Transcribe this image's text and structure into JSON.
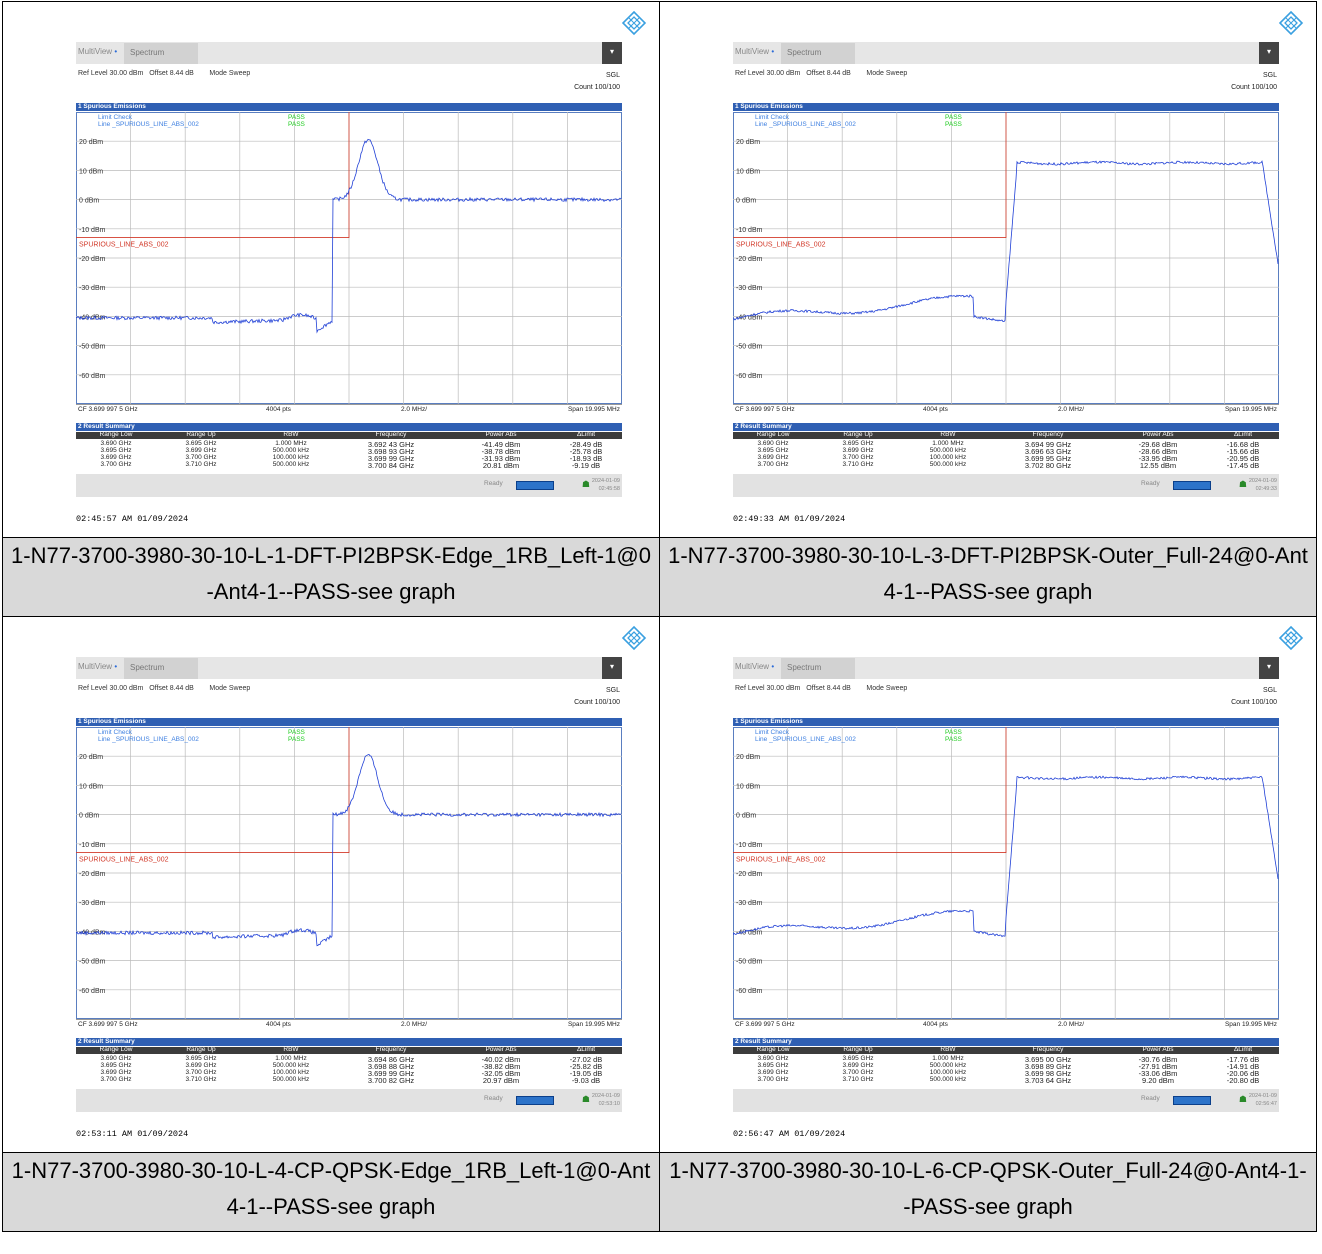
{
  "panels": [
    {
      "tab_multiview": "MultiView",
      "tab_spectrum": "Spectrum",
      "ref_level": "Ref Level 30.00 dBm",
      "offset": "Offset 8.44 dB",
      "mode": "Mode Sweep",
      "sgl": "SGL",
      "count": "Count 100/100",
      "spur_title": "1 Spurious Emissions",
      "limit_check": "Limit Check",
      "limit_check_result": "PASS",
      "line_name": "Line _SPURIOUS_LINE_ABS_002",
      "line_result": "PASS",
      "limit_label": "SPURIOUS_LINE_ABS_002",
      "cf": "CF 3.699 997 5 GHz",
      "pts": "4004 pts",
      "div": "2.0 MHz/",
      "span": "Span 19.995 MHz",
      "result_title": "2 Result Summary",
      "headers": [
        "Range Low",
        "Range Up",
        "RBW",
        "Frequency",
        "Power Abs",
        "ΔLimit"
      ],
      "rows": [
        [
          "3.690 GHz",
          "3.695 GHz",
          "1.000 MHz",
          "3.692 43 GHz",
          "-41.49 dBm",
          "-28.49 dB"
        ],
        [
          "3.695 GHz",
          "3.699 GHz",
          "500.000 kHz",
          "3.698 93 GHz",
          "-38.78 dBm",
          "-25.78 dB"
        ],
        [
          "3.699 GHz",
          "3.700 GHz",
          "100.000 kHz",
          "3.699 99 GHz",
          "-31.93 dBm",
          "-18.93 dB"
        ],
        [
          "3.700 GHz",
          "3.710 GHz",
          "500.000 kHz",
          "3.700 84 GHz",
          "20.81 dBm",
          "-9.19 dB"
        ]
      ],
      "status": "Ready",
      "date": "2024-01-09",
      "time": "02:45:58",
      "timestamp": "02:45:57 AM  01/09/2024",
      "caption": "1-N77-3700-3980-30-10-L-1-DFT-PI2BPSK-Edge_1RB_Left-1@0-Ant4-1--PASS-see graph",
      "trace_type": "narrow"
    },
    {
      "tab_multiview": "MultiView",
      "tab_spectrum": "Spectrum",
      "ref_level": "Ref Level 30.00 dBm",
      "offset": "Offset 8.44 dB",
      "mode": "Mode Sweep",
      "sgl": "SGL",
      "count": "Count 100/100",
      "spur_title": "1 Spurious Emissions",
      "limit_check": "Limit Check",
      "limit_check_result": "PASS",
      "line_name": "Line _SPURIOUS_LINE_ABS_002",
      "line_result": "PASS",
      "limit_label": "SPURIOUS_LINE_ABS_002",
      "cf": "CF 3.699 997 5 GHz",
      "pts": "4004 pts",
      "div": "2.0 MHz/",
      "span": "Span 19.995 MHz",
      "result_title": "2 Result Summary",
      "headers": [
        "Range Low",
        "Range Up",
        "RBW",
        "Frequency",
        "Power Abs",
        "ΔLimit"
      ],
      "rows": [
        [
          "3.690 GHz",
          "3.695 GHz",
          "1.000 MHz",
          "3.694 99 GHz",
          "-29.68 dBm",
          "-16.68 dB"
        ],
        [
          "3.695 GHz",
          "3.699 GHz",
          "500.000 kHz",
          "3.696 63 GHz",
          "-28.66 dBm",
          "-15.66 dB"
        ],
        [
          "3.699 GHz",
          "3.700 GHz",
          "100.000 kHz",
          "3.699 95 GHz",
          "-33.95 dBm",
          "-20.95 dB"
        ],
        [
          "3.700 GHz",
          "3.710 GHz",
          "500.000 kHz",
          "3.702 80 GHz",
          "12.55 dBm",
          "-17.45 dB"
        ]
      ],
      "status": "Ready",
      "date": "2024-01-09",
      "time": "02:49:33",
      "timestamp": "02:49:33 AM  01/09/2024",
      "caption": "1-N77-3700-3980-30-10-L-3-DFT-PI2BPSK-Outer_Full-24@0-Ant4-1--PASS-see graph",
      "trace_type": "wide"
    },
    {
      "tab_multiview": "MultiView",
      "tab_spectrum": "Spectrum",
      "ref_level": "Ref Level 30.00 dBm",
      "offset": "Offset 8.44 dB",
      "mode": "Mode Sweep",
      "sgl": "SGL",
      "count": "Count 100/100",
      "spur_title": "1 Spurious Emissions",
      "limit_check": "Limit Check",
      "limit_check_result": "PASS",
      "line_name": "Line _SPURIOUS_LINE_ABS_002",
      "line_result": "PASS",
      "limit_label": "SPURIOUS_LINE_ABS_002",
      "cf": "CF 3.699 997 5 GHz",
      "pts": "4004 pts",
      "div": "2.0 MHz/",
      "span": "Span 19.995 MHz",
      "result_title": "2 Result Summary",
      "headers": [
        "Range Low",
        "Range Up",
        "RBW",
        "Frequency",
        "Power Abs",
        "ΔLimit"
      ],
      "rows": [
        [
          "3.690 GHz",
          "3.695 GHz",
          "1.000 MHz",
          "3.694 86 GHz",
          "-40.02 dBm",
          "-27.02 dB"
        ],
        [
          "3.695 GHz",
          "3.699 GHz",
          "500.000 kHz",
          "3.698 88 GHz",
          "-38.82 dBm",
          "-25.82 dB"
        ],
        [
          "3.699 GHz",
          "3.700 GHz",
          "100.000 kHz",
          "3.699 99 GHz",
          "-32.05 dBm",
          "-19.05 dB"
        ],
        [
          "3.700 GHz",
          "3.710 GHz",
          "500.000 kHz",
          "3.700 82 GHz",
          "20.97 dBm",
          "-9.03 dB"
        ]
      ],
      "status": "Ready",
      "date": "2024-01-09",
      "time": "02:53:10",
      "timestamp": "02:53:11 AM  01/09/2024",
      "caption": "1-N77-3700-3980-30-10-L-4-CP-QPSK-Edge_1RB_Left-1@0-Ant4-1--PASS-see graph",
      "trace_type": "narrow"
    },
    {
      "tab_multiview": "MultiView",
      "tab_spectrum": "Spectrum",
      "ref_level": "Ref Level 30.00 dBm",
      "offset": "Offset 8.44 dB",
      "mode": "Mode Sweep",
      "sgl": "SGL",
      "count": "Count 100/100",
      "spur_title": "1 Spurious Emissions",
      "limit_check": "Limit Check",
      "limit_check_result": "PASS",
      "line_name": "Line _SPURIOUS_LINE_ABS_002",
      "line_result": "PASS",
      "limit_label": "SPURIOUS_LINE_ABS_002",
      "cf": "CF 3.699 997 5 GHz",
      "pts": "4004 pts",
      "div": "2.0 MHz/",
      "span": "Span 19.995 MHz",
      "result_title": "2 Result Summary",
      "headers": [
        "Range Low",
        "Range Up",
        "RBW",
        "Frequency",
        "Power Abs",
        "ΔLimit"
      ],
      "rows": [
        [
          "3.690 GHz",
          "3.695 GHz",
          "1.000 MHz",
          "3.695 00 GHz",
          "-30.76 dBm",
          "-17.76 dB"
        ],
        [
          "3.695 GHz",
          "3.699 GHz",
          "500.000 kHz",
          "3.698 89 GHz",
          "-27.91 dBm",
          "-14.91 dB"
        ],
        [
          "3.699 GHz",
          "3.700 GHz",
          "100.000 kHz",
          "3.699 98 GHz",
          "-33.06 dBm",
          "-20.06 dB"
        ],
        [
          "3.700 GHz",
          "3.710 GHz",
          "500.000 kHz",
          "3.703 64 GHz",
          "9.20 dBm",
          "-20.80 dB"
        ]
      ],
      "status": "Ready",
      "date": "2024-01-09",
      "time": "02:56:47",
      "timestamp": "02:56:47 AM  01/09/2024",
      "caption": "1-N77-3700-3980-30-10-L-6-CP-QPSK-Outer_Full-24@0-Ant4-1--PASS-see graph",
      "trace_type": "wide"
    }
  ],
  "y_axis_labels": [
    "20 dBm",
    "10 dBm",
    "0 dBm",
    "-10 dBm",
    "-20 dBm",
    "-30 dBm",
    "-40 dBm",
    "-50 dBm",
    "-60 dBm"
  ],
  "colors": {
    "trace": "#1f3fd6",
    "limit": "#d23a2a",
    "pass": "#1fcc1f",
    "header_bar": "#2f5fb3"
  }
}
